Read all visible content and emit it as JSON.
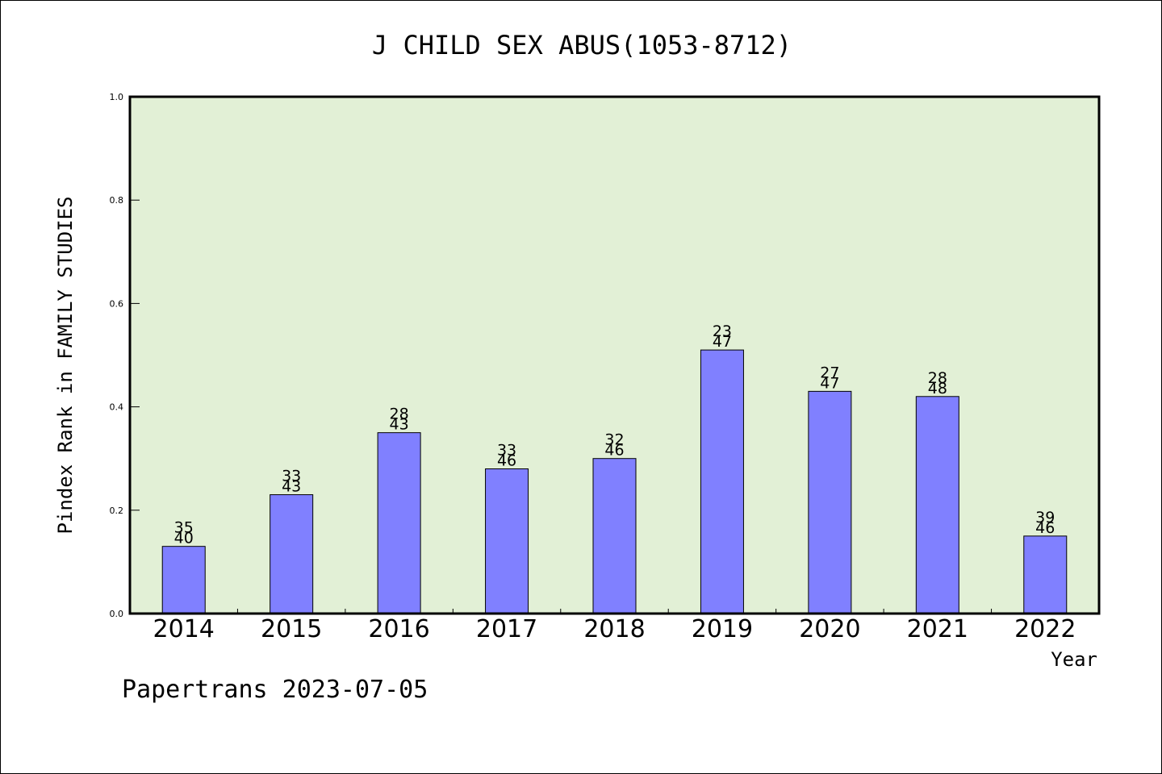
{
  "chart_data": {
    "type": "bar",
    "title": "J CHILD SEX ABUS(1053-8712)",
    "xlabel": "Year",
    "ylabel": "Pindex Rank in FAMILY STUDIES",
    "ylim": [
      0,
      1.0
    ],
    "yticks": [
      "0.0",
      "0.2",
      "0.4",
      "0.6",
      "0.8",
      "1.0"
    ],
    "grid": false,
    "plot_background": "#e2f0d6",
    "bar_color": "#8080ff",
    "categories": [
      "2014",
      "2015",
      "2016",
      "2017",
      "2018",
      "2019",
      "2020",
      "2021",
      "2022"
    ],
    "values": [
      0.13,
      0.23,
      0.35,
      0.28,
      0.3,
      0.51,
      0.43,
      0.42,
      0.15
    ],
    "rank_labels": [
      "35",
      "33",
      "28",
      "33",
      "32",
      "23",
      "27",
      "28",
      "39"
    ],
    "total_labels": [
      "40",
      "43",
      "43",
      "46",
      "46",
      "47",
      "47",
      "48",
      "46"
    ],
    "footer": "Papertrans 2023-07-05"
  }
}
